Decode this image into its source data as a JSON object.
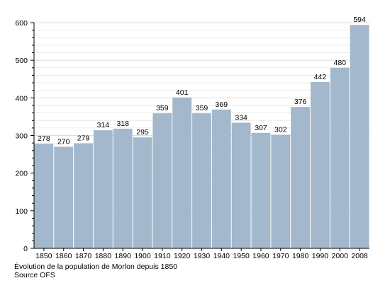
{
  "chart_data": {
    "type": "bar",
    "categories": [
      "1850",
      "1860",
      "1870",
      "1880",
      "1890",
      "1900",
      "1910",
      "1920",
      "1930",
      "1940",
      "1950",
      "1960",
      "1970",
      "1980",
      "1990",
      "2000",
      "2008"
    ],
    "values": [
      278,
      270,
      279,
      314,
      318,
      295,
      359,
      401,
      359,
      369,
      334,
      307,
      302,
      376,
      442,
      480,
      594
    ],
    "ylim": [
      0,
      600
    ],
    "yticks": [
      0,
      100,
      200,
      300,
      400,
      500,
      600
    ],
    "grid": true,
    "bar_color": "#a3b8cc",
    "gridline_color": "#dddddd"
  },
  "caption": {
    "title": "Évolution de la population de Morlon depuis 1850",
    "source": "Source OFS"
  }
}
